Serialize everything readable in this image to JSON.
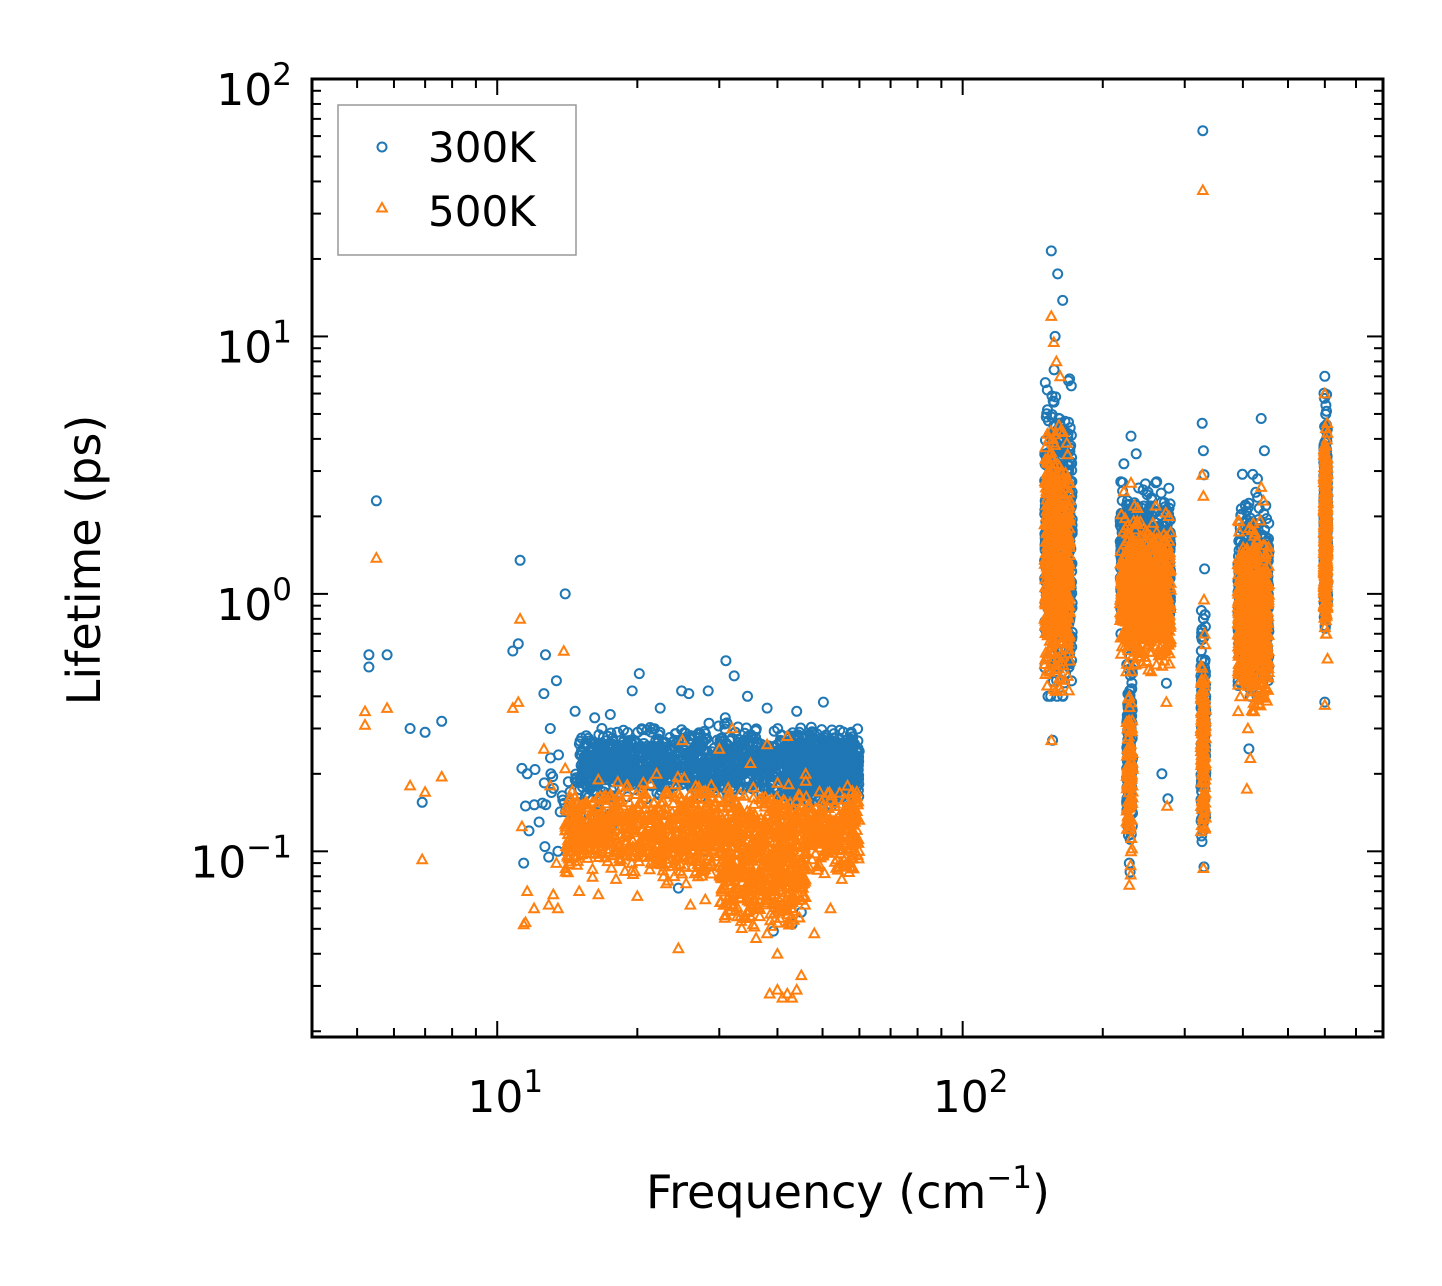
{
  "chart_data": {
    "type": "scatter",
    "title": "",
    "xlabel": "Frequency (cm",
    "xlabel_sup": "−1",
    "xlabel_close": ")",
    "ylabel": "Lifetime (ps)",
    "xscale": "log",
    "yscale": "log",
    "xlim": [
      4.0,
      800.0
    ],
    "ylim": [
      0.019,
      100.0
    ],
    "x_ticks": [
      {
        "value": 10,
        "base": "10",
        "exp": "1"
      },
      {
        "value": 100,
        "base": "10",
        "exp": "2"
      }
    ],
    "y_ticks": [
      {
        "value": 0.1,
        "base": "10",
        "exp": "−1"
      },
      {
        "value": 1,
        "base": "10",
        "exp": "0"
      },
      {
        "value": 10,
        "base": "10",
        "exp": "1"
      },
      {
        "value": 100,
        "base": "10",
        "exp": "2"
      }
    ],
    "legend_position": "top-left",
    "series": [
      {
        "name": "300K",
        "color": "#1f77b4",
        "marker": "circle",
        "points": [
          [
            5.3,
            0.58
          ],
          [
            5.3,
            0.52
          ],
          [
            5.5,
            2.3
          ],
          [
            5.8,
            0.58
          ],
          [
            6.5,
            0.3
          ],
          [
            7.0,
            0.29
          ],
          [
            6.9,
            0.155
          ],
          [
            7.6,
            0.32
          ],
          [
            10.8,
            0.6
          ],
          [
            11.1,
            0.64
          ],
          [
            11.2,
            1.35
          ],
          [
            11.3,
            0.21
          ],
          [
            11.6,
            0.2
          ],
          [
            11.5,
            0.15
          ],
          [
            11.7,
            0.12
          ],
          [
            11.4,
            0.09
          ],
          [
            12.6,
            0.41
          ],
          [
            12.7,
            0.58
          ],
          [
            13.0,
            0.3
          ],
          [
            13.4,
            0.46
          ],
          [
            14.0,
            1.0
          ],
          [
            12.3,
            0.13
          ],
          [
            13.5,
            0.1
          ],
          [
            12.9,
            0.095
          ],
          [
            14.7,
            0.35
          ],
          [
            16.2,
            0.33
          ],
          [
            17.5,
            0.34
          ],
          [
            19.5,
            0.42
          ],
          [
            20.2,
            0.49
          ],
          [
            22.4,
            0.36
          ],
          [
            24.9,
            0.42
          ],
          [
            25.8,
            0.41
          ],
          [
            28.4,
            0.42
          ],
          [
            31.0,
            0.55
          ],
          [
            32.3,
            0.48
          ],
          [
            30.9,
            0.33
          ],
          [
            34.5,
            0.4
          ],
          [
            38.0,
            0.36
          ],
          [
            44.0,
            0.35
          ],
          [
            50.2,
            0.38
          ],
          [
            24.5,
            0.072
          ],
          [
            39.2,
            0.049
          ],
          [
            43.0,
            0.052
          ],
          [
            45.0,
            0.058
          ],
          [
            28.0,
            0.1
          ],
          [
            36.5,
            0.08
          ],
          [
            155.0,
            21.5
          ],
          [
            160.0,
            17.5
          ],
          [
            164.0,
            13.8
          ],
          [
            158.0,
            10.0
          ],
          [
            157.0,
            4.5
          ],
          [
            161.0,
            3.0
          ],
          [
            163.0,
            2.0
          ],
          [
            166.0,
            1.2
          ],
          [
            170.0,
            0.6
          ],
          [
            156.0,
            0.27
          ],
          [
            222.0,
            3.2
          ],
          [
            230.0,
            4.1
          ],
          [
            236.0,
            3.5
          ],
          [
            226.0,
            2.3
          ],
          [
            224.0,
            1.5
          ],
          [
            230.0,
            0.9
          ],
          [
            234.0,
            0.6
          ],
          [
            229.0,
            0.3
          ],
          [
            231.0,
            0.15
          ],
          [
            228.0,
            0.09
          ],
          [
            260.0,
            2.7
          ],
          [
            266.0,
            1.8
          ],
          [
            270.0,
            1.4
          ],
          [
            273.0,
            0.8
          ],
          [
            274.0,
            0.45
          ],
          [
            268.0,
            0.2
          ],
          [
            276.0,
            0.16
          ],
          [
            328.0,
            63.0
          ],
          [
            327.0,
            4.6
          ],
          [
            329.0,
            3.6
          ],
          [
            330.0,
            2.9
          ],
          [
            331.0,
            1.25
          ],
          [
            329.0,
            0.8
          ],
          [
            328.0,
            0.5
          ],
          [
            330.0,
            0.3
          ],
          [
            329.0,
            0.15
          ],
          [
            330.0,
            0.087
          ],
          [
            395.0,
            1.1
          ],
          [
            402.0,
            0.75
          ],
          [
            410.0,
            0.55
          ],
          [
            415.0,
            0.4
          ],
          [
            420.0,
            1.5
          ],
          [
            430.0,
            2.8
          ],
          [
            438.0,
            4.8
          ],
          [
            445.0,
            3.6
          ],
          [
            448.0,
            2.2
          ],
          [
            450.0,
            1.3
          ],
          [
            412.0,
            0.25
          ],
          [
            600.0,
            7.0
          ],
          [
            603.0,
            5.4
          ],
          [
            605.0,
            3.2
          ],
          [
            602.0,
            2.0
          ],
          [
            604.0,
            1.1
          ],
          [
            601.0,
            0.8
          ],
          [
            600.0,
            0.38
          ]
        ]
      },
      {
        "name": "500K",
        "color": "#ff7f0e",
        "marker": "triangle",
        "points": [
          [
            5.2,
            0.35
          ],
          [
            5.2,
            0.31
          ],
          [
            5.5,
            1.38
          ],
          [
            5.8,
            0.36
          ],
          [
            6.5,
            0.18
          ],
          [
            7.0,
            0.17
          ],
          [
            6.9,
            0.093
          ],
          [
            7.6,
            0.195
          ],
          [
            10.8,
            0.36
          ],
          [
            11.1,
            0.38
          ],
          [
            11.2,
            0.8
          ],
          [
            11.3,
            0.125
          ],
          [
            11.6,
            0.07
          ],
          [
            11.4,
            0.052
          ],
          [
            11.5,
            0.053
          ],
          [
            12.0,
            0.06
          ],
          [
            12.6,
            0.25
          ],
          [
            13.0,
            0.18
          ],
          [
            13.4,
            0.09
          ],
          [
            13.9,
            0.6
          ],
          [
            14.0,
            0.21
          ],
          [
            12.9,
            0.062
          ],
          [
            13.5,
            0.06
          ],
          [
            13.2,
            0.068
          ],
          [
            15.0,
            0.07
          ],
          [
            16.5,
            0.068
          ],
          [
            18.0,
            0.078
          ],
          [
            20.0,
            0.067
          ],
          [
            22.0,
            0.09
          ],
          [
            24.0,
            0.08
          ],
          [
            26.0,
            0.062
          ],
          [
            28.0,
            0.065
          ],
          [
            24.5,
            0.042
          ],
          [
            32.0,
            0.061
          ],
          [
            34.0,
            0.055
          ],
          [
            35.0,
            0.056
          ],
          [
            36.0,
            0.046
          ],
          [
            38.0,
            0.048
          ],
          [
            40.0,
            0.04
          ],
          [
            38.5,
            0.028
          ],
          [
            40.0,
            0.029
          ],
          [
            41.0,
            0.027
          ],
          [
            42.0,
            0.028
          ],
          [
            43.0,
            0.027
          ],
          [
            44.0,
            0.029
          ],
          [
            45.0,
            0.033
          ],
          [
            48.0,
            0.048
          ],
          [
            52.0,
            0.06
          ],
          [
            55.0,
            0.078
          ],
          [
            57.0,
            0.083
          ],
          [
            16.5,
            0.19
          ],
          [
            19.0,
            0.17
          ],
          [
            22.0,
            0.2
          ],
          [
            25.0,
            0.27
          ],
          [
            30.0,
            0.25
          ],
          [
            32.0,
            0.3
          ],
          [
            35.0,
            0.22
          ],
          [
            38.0,
            0.26
          ],
          [
            42.0,
            0.28
          ],
          [
            46.0,
            0.2
          ],
          [
            50.0,
            0.15
          ],
          [
            155.0,
            12.0
          ],
          [
            157.0,
            9.5
          ],
          [
            159.0,
            8.0
          ],
          [
            162.0,
            7.0
          ],
          [
            156.0,
            4.0
          ],
          [
            160.0,
            2.5
          ],
          [
            163.0,
            1.8
          ],
          [
            166.0,
            1.0
          ],
          [
            170.0,
            0.55
          ],
          [
            155.0,
            0.27
          ],
          [
            222.0,
            2.5
          ],
          [
            230.0,
            2.7
          ],
          [
            234.0,
            2.2
          ],
          [
            226.0,
            1.6
          ],
          [
            224.0,
            1.0
          ],
          [
            230.0,
            0.7
          ],
          [
            228.0,
            0.4
          ],
          [
            229.0,
            0.2
          ],
          [
            230.0,
            0.1
          ],
          [
            228.0,
            0.074
          ],
          [
            260.0,
            2.2
          ],
          [
            265.0,
            1.2
          ],
          [
            268.0,
            0.9
          ],
          [
            271.0,
            0.55
          ],
          [
            274.0,
            0.38
          ],
          [
            275.0,
            0.15
          ],
          [
            328.0,
            37.0
          ],
          [
            327.0,
            2.9
          ],
          [
            329.0,
            2.4
          ],
          [
            330.0,
            0.95
          ],
          [
            331.0,
            0.7
          ],
          [
            329.0,
            0.45
          ],
          [
            328.0,
            0.3
          ],
          [
            330.0,
            0.15
          ],
          [
            329.0,
            0.086
          ],
          [
            395.0,
            0.4
          ],
          [
            402.0,
            0.5
          ],
          [
            410.0,
            0.3
          ],
          [
            415.0,
            0.23
          ],
          [
            420.0,
            0.8
          ],
          [
            430.0,
            1.6
          ],
          [
            438.0,
            2.6
          ],
          [
            443.0,
            2.3
          ],
          [
            447.0,
            1.4
          ],
          [
            450.0,
            0.75
          ],
          [
            408.0,
            0.175
          ],
          [
            435.0,
            0.42
          ],
          [
            600.0,
            6.0
          ],
          [
            603.0,
            4.4
          ],
          [
            604.0,
            2.6
          ],
          [
            602.0,
            1.6
          ],
          [
            605.0,
            0.9
          ],
          [
            608.0,
            0.56
          ],
          [
            600.0,
            0.37
          ]
        ]
      }
    ],
    "clusters": [
      {
        "series": 0,
        "xmin": 15.0,
        "xmax": 60.0,
        "ymin": 0.16,
        "ymax": 0.34,
        "count": 1300,
        "ycenter": 0.22
      },
      {
        "series": 0,
        "xmin": 42.0,
        "xmax": 60.0,
        "ymin": 0.15,
        "ymax": 0.33,
        "count": 500,
        "ycenter": 0.21
      },
      {
        "series": 0,
        "xmin": 12.0,
        "xmax": 18.0,
        "ymin": 0.1,
        "ymax": 0.3,
        "count": 60,
        "ycenter": 0.16
      },
      {
        "series": 0,
        "xmin": 150.0,
        "xmax": 172.0,
        "ymin": 0.4,
        "ymax": 10.0,
        "count": 650,
        "ycenter": 1.6
      },
      {
        "series": 0,
        "xmin": 218.0,
        "xmax": 280.0,
        "ymin": 0.7,
        "ymax": 3.3,
        "count": 750,
        "ycenter": 1.3
      },
      {
        "series": 0,
        "xmin": 225.0,
        "xmax": 232.0,
        "ymin": 0.08,
        "ymax": 0.7,
        "count": 120,
        "ycenter": 0.25
      },
      {
        "series": 0,
        "xmin": 325.0,
        "xmax": 333.0,
        "ymin": 0.085,
        "ymax": 1.0,
        "count": 150,
        "ycenter": 0.28
      },
      {
        "series": 0,
        "xmin": 390.0,
        "xmax": 455.0,
        "ymin": 0.4,
        "ymax": 3.0,
        "count": 700,
        "ycenter": 1.0
      },
      {
        "series": 0,
        "xmin": 597.0,
        "xmax": 608.0,
        "ymin": 0.7,
        "ymax": 6.5,
        "count": 350,
        "ycenter": 2.0
      },
      {
        "series": 1,
        "xmin": 14.0,
        "xmax": 60.0,
        "ymin": 0.075,
        "ymax": 0.2,
        "count": 1300,
        "ycenter": 0.12
      },
      {
        "series": 1,
        "xmin": 30.0,
        "xmax": 46.0,
        "ymin": 0.045,
        "ymax": 0.11,
        "count": 300,
        "ycenter": 0.075
      },
      {
        "series": 1,
        "xmin": 150.0,
        "xmax": 170.0,
        "ymin": 0.42,
        "ymax": 6.5,
        "count": 600,
        "ycenter": 1.3
      },
      {
        "series": 1,
        "xmin": 218.0,
        "xmax": 280.0,
        "ymin": 0.5,
        "ymax": 2.5,
        "count": 700,
        "ycenter": 1.0
      },
      {
        "series": 1,
        "xmin": 225.0,
        "xmax": 232.0,
        "ymin": 0.074,
        "ymax": 0.5,
        "count": 100,
        "ycenter": 0.2
      },
      {
        "series": 1,
        "xmin": 325.0,
        "xmax": 333.0,
        "ymin": 0.086,
        "ymax": 0.7,
        "count": 120,
        "ycenter": 0.25
      },
      {
        "series": 1,
        "xmin": 390.0,
        "xmax": 455.0,
        "ymin": 0.35,
        "ymax": 2.2,
        "count": 650,
        "ycenter": 0.8
      },
      {
        "series": 1,
        "xmin": 597.0,
        "xmax": 608.0,
        "ymin": 0.7,
        "ymax": 5.5,
        "count": 330,
        "ycenter": 1.7
      }
    ]
  }
}
